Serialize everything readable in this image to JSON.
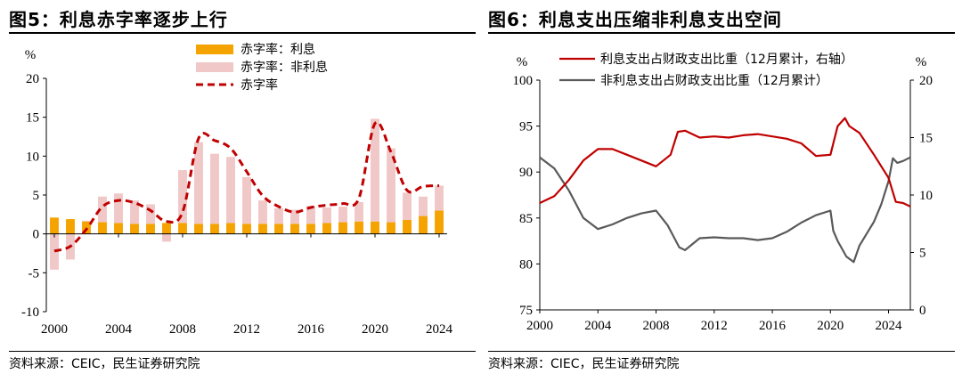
{
  "charts": [
    {
      "title": "图5：利息赤字率逐步上行",
      "source": "资料来源：CEIC，民生证券研究院",
      "y_unit": "%",
      "legend": [
        "赤字率：利息",
        "赤字率：非利息",
        "赤字率"
      ],
      "colors": {
        "interest": "#f5a300",
        "noninterest": "#f0c8c8",
        "deficit": "#c00000"
      }
    },
    {
      "title": "图6：利息支出压缩非利息支出空间",
      "source": "资料来源：CIEC，民生证券研究院",
      "y_unit_left": "%",
      "y_unit_right": "%",
      "legend": [
        "利息支出占财政支出比重（12月累计，右轴）",
        "非利息支出占财政支出比重（12月累计）"
      ],
      "colors": {
        "interest_share": "#c00000",
        "noninterest_share": "#595959"
      }
    }
  ],
  "chart_data": [
    {
      "type": "bar",
      "title": "图5：利息赤字率逐步上行",
      "xlabel": "",
      "ylabel": "%",
      "ylim": [
        -10,
        20
      ],
      "yticks": [
        -10,
        -5,
        0,
        5,
        10,
        15,
        20
      ],
      "xticks": [
        2000,
        2004,
        2008,
        2012,
        2016,
        2020,
        2024
      ],
      "grid": false,
      "legend_position": "top-center",
      "categories": [
        2000,
        2001,
        2002,
        2003,
        2004,
        2005,
        2006,
        2007,
        2008,
        2009,
        2010,
        2011,
        2012,
        2013,
        2014,
        2015,
        2016,
        2017,
        2018,
        2019,
        2020,
        2021,
        2022,
        2023,
        2024
      ],
      "series": [
        {
          "name": "赤字率：利息",
          "kind": "stacked-bar",
          "values": [
            2.1,
            1.9,
            1.6,
            1.5,
            1.4,
            1.3,
            1.3,
            1.4,
            1.4,
            1.3,
            1.3,
            1.4,
            1.3,
            1.3,
            1.3,
            1.3,
            1.3,
            1.4,
            1.5,
            1.6,
            1.6,
            1.5,
            1.8,
            2.3,
            3.0
          ]
        },
        {
          "name": "赤字率：非利息",
          "kind": "stacked-bar",
          "values": [
            -4.6,
            -3.3,
            0.1,
            3.3,
            3.8,
            3.0,
            2.5,
            -1.0,
            6.8,
            10.5,
            9.0,
            8.5,
            6.0,
            3.0,
            2.0,
            1.8,
            2.3,
            2.0,
            2.0,
            2.5,
            13.2,
            9.5,
            3.5,
            2.5,
            3.2
          ]
        },
        {
          "name": "赤字率",
          "kind": "line-dashed",
          "values": [
            -2.2,
            -1.6,
            0.6,
            3.5,
            4.3,
            4.0,
            3.0,
            1.6,
            2.8,
            12.3,
            12.0,
            11.0,
            8.0,
            4.9,
            3.5,
            2.8,
            3.4,
            3.7,
            3.9,
            4.6,
            14.2,
            10.5,
            5.6,
            6.1,
            6.2
          ]
        }
      ]
    },
    {
      "type": "line",
      "title": "图6：利息支出压缩非利息支出空间",
      "xlabel": "",
      "ylabel_left": "%",
      "ylabel_right": "%",
      "ylim_left": [
        75,
        100
      ],
      "ylim_right": [
        0,
        20
      ],
      "yticks_left": [
        75,
        80,
        85,
        90,
        95,
        100
      ],
      "yticks_right": [
        0,
        5,
        10,
        15,
        20
      ],
      "xticks": [
        2000,
        2004,
        2008,
        2012,
        2016,
        2020,
        2024
      ],
      "xlim": [
        2000,
        2025.5
      ],
      "grid": false,
      "legend_position": "top-center",
      "series": [
        {
          "name": "利息支出占财政支出比重（12月累计，右轴）",
          "axis": "right",
          "x": [
            2000,
            2001,
            2002,
            2003,
            2004,
            2005,
            2006,
            2007,
            2008,
            2009,
            2009.5,
            2010,
            2011,
            2012,
            2013,
            2014,
            2015,
            2016,
            2017,
            2018,
            2019,
            2020,
            2020.5,
            2021,
            2021.3,
            2022,
            2023,
            2024,
            2024.5,
            2025,
            2025.5
          ],
          "y": [
            9.3,
            9.9,
            11.3,
            13.0,
            14.0,
            14.0,
            13.5,
            13.0,
            12.5,
            13.5,
            15.5,
            15.6,
            15.0,
            15.1,
            15.0,
            15.2,
            15.3,
            15.1,
            14.9,
            14.5,
            13.4,
            13.5,
            16.0,
            16.7,
            16.0,
            15.4,
            13.5,
            11.5,
            9.4,
            9.3,
            9.0
          ]
        },
        {
          "name": "非利息支出占财政支出比重（12月累计）",
          "axis": "left",
          "x": [
            2000,
            2001,
            2002,
            2003,
            2004,
            2005,
            2006,
            2007,
            2008,
            2008.8,
            2009.6,
            2010,
            2011,
            2012,
            2013,
            2014,
            2015,
            2016,
            2017,
            2018,
            2019,
            2020,
            2020.2,
            2020.5,
            2021.1,
            2021.6,
            2022,
            2023,
            2023.5,
            2024,
            2024.3,
            2024.6,
            2025,
            2025.5
          ],
          "y": [
            91.6,
            90.4,
            88.0,
            85.0,
            83.8,
            84.3,
            85.0,
            85.5,
            85.8,
            84.2,
            81.8,
            81.5,
            82.8,
            82.9,
            82.8,
            82.8,
            82.6,
            82.8,
            83.5,
            84.5,
            85.3,
            85.8,
            83.6,
            82.5,
            80.8,
            80.2,
            82.0,
            84.6,
            86.5,
            89.0,
            91.5,
            91.0,
            91.2,
            91.6
          ]
        }
      ]
    }
  ]
}
